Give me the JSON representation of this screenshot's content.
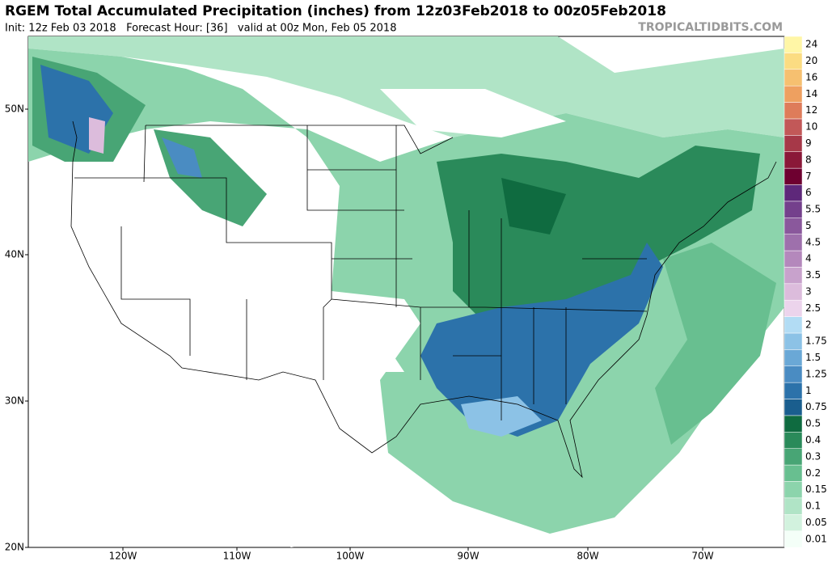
{
  "header": {
    "title": "RGEM Total Accumulated Precipitation (inches) from 12z03Feb2018 to 00z05Feb2018",
    "subtitle": "Init: 12z Feb 03 2018   Forecast Hour: [36]   valid at 00z Mon, Feb 05 2018",
    "credit": "TROPICALTIDBITS.COM"
  },
  "map": {
    "lat_labels": [
      "50N",
      "40N",
      "30N",
      "20N"
    ],
    "lon_labels": [
      "120W",
      "110W",
      "100W",
      "90W",
      "80W",
      "70W"
    ]
  },
  "legend": {
    "levels": [
      0.01,
      0.05,
      0.1,
      0.15,
      0.2,
      0.3,
      0.4,
      0.5,
      0.75,
      1,
      1.25,
      1.5,
      1.75,
      2,
      2.5,
      3,
      3.5,
      4,
      4.5,
      5,
      5.5,
      6,
      7,
      8,
      9,
      10,
      12,
      14,
      16,
      20,
      24
    ],
    "colors": [
      "#f4fff8",
      "#d2f2de",
      "#b0e4c6",
      "#8cd4ac",
      "#68bf90",
      "#48a575",
      "#2a8a5a",
      "#0f6b40",
      "#1a5e8e",
      "#2c72aa",
      "#4a8cc2",
      "#6aa8d6",
      "#8cc2e6",
      "#b2dcf4",
      "#ecd4ec",
      "#dcbcdc",
      "#c8a2cc",
      "#b488bc",
      "#9e70ac",
      "#8a589c",
      "#74408c",
      "#5e287a",
      "#6e0030",
      "#8a1838",
      "#a63848",
      "#c25858",
      "#de7c5a",
      "#eea060",
      "#f6c070",
      "#fbdc82",
      "#fff6a6"
    ]
  }
}
